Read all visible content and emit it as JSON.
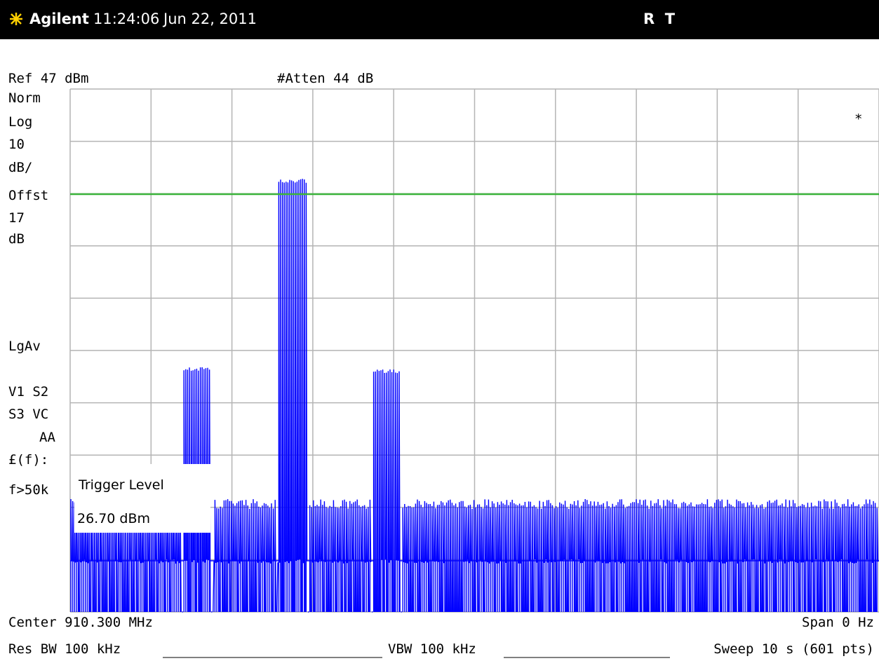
{
  "header": {
    "brand": "Agilent",
    "time": "11:24:06",
    "date": "Jun 22, 2011",
    "status": "R  T"
  },
  "top_labels": {
    "ref": "Ref 47 dBm",
    "atten": "#Atten 44 dB"
  },
  "side_labels": [
    "Norm",
    "Log",
    "10",
    "dB/",
    "Offst",
    "17",
    "dB",
    "LgAv",
    "V1  S2",
    "S3  VC",
    "AA",
    "£(f):",
    "f>50k"
  ],
  "marker": "*",
  "trigger": {
    "title": "Trigger Level",
    "value": "26.70 dBm"
  },
  "bottom": {
    "center": "Center 910.300 MHz",
    "span": "Span 0 Hz",
    "rbw": "Res BW 100 kHz",
    "vbw": "VBW 100 kHz",
    "sweep": "Sweep 10 s (601 pts)"
  }
}
